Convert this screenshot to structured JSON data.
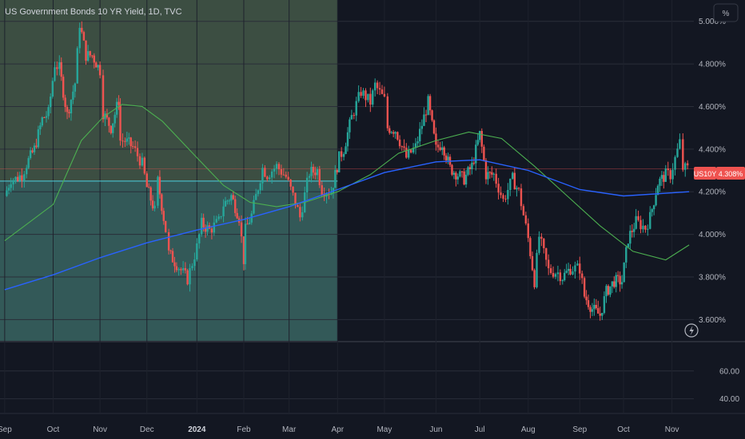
{
  "header": {
    "title": "US Government Bonds 10 YR Yield, 1D, TVC"
  },
  "scale_button": {
    "label": "%"
  },
  "lightning_icon": "lightning-icon",
  "price_badge": {
    "symbol": "US10Y",
    "value": "4.308%"
  },
  "colors": {
    "background": "#131722",
    "up": "#26a69a",
    "down": "#ef5350",
    "ma_fast": "#4caf50",
    "ma_slow": "#2962ff",
    "hline": "#4dd0e1",
    "price_line": "#ef5350",
    "shade_top": "#3c4e42",
    "shade_bottom": "#335958"
  },
  "chart_data": [
    {
      "type": "candlestick",
      "title": "US Government Bonds 10 YR Yield, 1D, TVC",
      "unit": "%",
      "x_tick_labels": [
        "Sep",
        "Oct",
        "Nov",
        "Dec",
        "2024",
        "Feb",
        "Mar",
        "Apr",
        "May",
        "Jun",
        "Jul",
        "Aug",
        "Sep",
        "Oct",
        "Nov"
      ],
      "y_tick_labels": [
        "5.000%",
        "4.800%",
        "4.600%",
        "4.400%",
        "4.200%",
        "4.000%",
        "3.800%",
        "3.600%"
      ],
      "ylim": [
        3.5,
        5.1
      ],
      "last_value": 4.308,
      "horizontal_level": 4.25,
      "series": [
        {
          "kind": "close",
          "points": [
            {
              "x": "2023-09-01",
              "y": 4.18
            },
            {
              "x": "2023-09-05",
              "y": 4.26
            },
            {
              "x": "2023-09-08",
              "y": 4.26
            },
            {
              "x": "2023-09-12",
              "y": 4.28
            },
            {
              "x": "2023-09-15",
              "y": 4.33
            },
            {
              "x": "2023-09-20",
              "y": 4.4
            },
            {
              "x": "2023-09-25",
              "y": 4.54
            },
            {
              "x": "2023-09-29",
              "y": 4.57
            },
            {
              "x": "2023-10-03",
              "y": 4.8
            },
            {
              "x": "2023-10-06",
              "y": 4.78
            },
            {
              "x": "2023-10-11",
              "y": 4.56
            },
            {
              "x": "2023-10-16",
              "y": 4.71
            },
            {
              "x": "2023-10-19",
              "y": 4.99
            },
            {
              "x": "2023-10-23",
              "y": 4.84
            },
            {
              "x": "2023-10-27",
              "y": 4.84
            },
            {
              "x": "2023-11-01",
              "y": 4.77
            },
            {
              "x": "2023-11-03",
              "y": 4.57
            },
            {
              "x": "2023-11-08",
              "y": 4.5
            },
            {
              "x": "2023-11-13",
              "y": 4.63
            },
            {
              "x": "2023-11-14",
              "y": 4.44
            },
            {
              "x": "2023-11-17",
              "y": 4.44
            },
            {
              "x": "2023-11-22",
              "y": 4.41
            },
            {
              "x": "2023-11-28",
              "y": 4.33
            },
            {
              "x": "2023-12-01",
              "y": 4.22
            },
            {
              "x": "2023-12-06",
              "y": 4.11
            },
            {
              "x": "2023-12-08",
              "y": 4.25
            },
            {
              "x": "2023-12-13",
              "y": 4.02
            },
            {
              "x": "2023-12-15",
              "y": 3.91
            },
            {
              "x": "2023-12-20",
              "y": 3.86
            },
            {
              "x": "2023-12-27",
              "y": 3.79
            },
            {
              "x": "2024-01-02",
              "y": 3.94
            },
            {
              "x": "2024-01-05",
              "y": 4.05
            },
            {
              "x": "2024-01-10",
              "y": 4.02
            },
            {
              "x": "2024-01-16",
              "y": 4.06
            },
            {
              "x": "2024-01-19",
              "y": 4.14
            },
            {
              "x": "2024-01-24",
              "y": 4.18
            },
            {
              "x": "2024-01-29",
              "y": 4.08
            },
            {
              "x": "2024-02-01",
              "y": 3.88
            },
            {
              "x": "2024-02-02",
              "y": 4.02
            },
            {
              "x": "2024-02-06",
              "y": 4.09
            },
            {
              "x": "2024-02-13",
              "y": 4.31
            },
            {
              "x": "2024-02-16",
              "y": 4.28
            },
            {
              "x": "2024-02-22",
              "y": 4.32
            },
            {
              "x": "2024-02-28",
              "y": 4.27
            },
            {
              "x": "2024-03-05",
              "y": 4.15
            },
            {
              "x": "2024-03-08",
              "y": 4.08
            },
            {
              "x": "2024-03-14",
              "y": 4.29
            },
            {
              "x": "2024-03-19",
              "y": 4.3
            },
            {
              "x": "2024-03-22",
              "y": 4.21
            },
            {
              "x": "2024-03-28",
              "y": 4.2
            },
            {
              "x": "2024-04-02",
              "y": 4.36
            },
            {
              "x": "2024-04-05",
              "y": 4.4
            },
            {
              "x": "2024-04-10",
              "y": 4.55
            },
            {
              "x": "2024-04-16",
              "y": 4.67
            },
            {
              "x": "2024-04-22",
              "y": 4.62
            },
            {
              "x": "2024-04-25",
              "y": 4.7
            },
            {
              "x": "2024-05-01",
              "y": 4.63
            },
            {
              "x": "2024-05-03",
              "y": 4.5
            },
            {
              "x": "2024-05-08",
              "y": 4.49
            },
            {
              "x": "2024-05-15",
              "y": 4.36
            },
            {
              "x": "2024-05-21",
              "y": 4.41
            },
            {
              "x": "2024-05-29",
              "y": 4.62
            },
            {
              "x": "2024-06-03",
              "y": 4.4
            },
            {
              "x": "2024-06-07",
              "y": 4.43
            },
            {
              "x": "2024-06-12",
              "y": 4.31
            },
            {
              "x": "2024-06-17",
              "y": 4.28
            },
            {
              "x": "2024-06-21",
              "y": 4.26
            },
            {
              "x": "2024-06-26",
              "y": 4.32
            },
            {
              "x": "2024-07-01",
              "y": 4.47
            },
            {
              "x": "2024-07-05",
              "y": 4.28
            },
            {
              "x": "2024-07-10",
              "y": 4.28
            },
            {
              "x": "2024-07-16",
              "y": 4.16
            },
            {
              "x": "2024-07-22",
              "y": 4.26
            },
            {
              "x": "2024-07-26",
              "y": 4.2
            },
            {
              "x": "2024-08-01",
              "y": 3.98
            },
            {
              "x": "2024-08-05",
              "y": 3.78
            },
            {
              "x": "2024-08-08",
              "y": 3.99
            },
            {
              "x": "2024-08-14",
              "y": 3.83
            },
            {
              "x": "2024-08-20",
              "y": 3.82
            },
            {
              "x": "2024-08-23",
              "y": 3.8
            },
            {
              "x": "2024-08-28",
              "y": 3.84
            },
            {
              "x": "2024-09-03",
              "y": 3.84
            },
            {
              "x": "2024-09-06",
              "y": 3.71
            },
            {
              "x": "2024-09-11",
              "y": 3.65
            },
            {
              "x": "2024-09-16",
              "y": 3.62
            },
            {
              "x": "2024-09-20",
              "y": 3.73
            },
            {
              "x": "2024-09-25",
              "y": 3.78
            },
            {
              "x": "2024-09-30",
              "y": 3.78
            },
            {
              "x": "2024-10-04",
              "y": 3.98
            },
            {
              "x": "2024-10-09",
              "y": 4.06
            },
            {
              "x": "2024-10-15",
              "y": 4.03
            },
            {
              "x": "2024-10-18",
              "y": 4.08
            },
            {
              "x": "2024-10-23",
              "y": 4.24
            },
            {
              "x": "2024-10-28",
              "y": 4.28
            },
            {
              "x": "2024-10-31",
              "y": 4.28
            },
            {
              "x": "2024-11-06",
              "y": 4.43
            },
            {
              "x": "2024-11-08",
              "y": 4.31
            },
            {
              "x": "2024-11-11",
              "y": 4.308
            }
          ]
        },
        {
          "kind": "moving_average",
          "color_key": "ma_fast",
          "points": [
            {
              "x": "2023-09-01",
              "y": 3.97
            },
            {
              "x": "2023-10-02",
              "y": 4.14
            },
            {
              "x": "2023-10-20",
              "y": 4.44
            },
            {
              "x": "2023-11-03",
              "y": 4.55
            },
            {
              "x": "2023-11-15",
              "y": 4.61
            },
            {
              "x": "2023-11-28",
              "y": 4.6
            },
            {
              "x": "2023-12-11",
              "y": 4.53
            },
            {
              "x": "2024-01-02",
              "y": 4.36
            },
            {
              "x": "2024-01-19",
              "y": 4.23
            },
            {
              "x": "2024-02-05",
              "y": 4.15
            },
            {
              "x": "2024-02-22",
              "y": 4.13
            },
            {
              "x": "2024-03-11",
              "y": 4.15
            },
            {
              "x": "2024-04-01",
              "y": 4.2
            },
            {
              "x": "2024-04-22",
              "y": 4.28
            },
            {
              "x": "2024-05-10",
              "y": 4.38
            },
            {
              "x": "2024-06-03",
              "y": 4.44
            },
            {
              "x": "2024-06-24",
              "y": 4.48
            },
            {
              "x": "2024-07-15",
              "y": 4.45
            },
            {
              "x": "2024-08-05",
              "y": 4.32
            },
            {
              "x": "2024-08-26",
              "y": 4.18
            },
            {
              "x": "2024-09-16",
              "y": 4.04
            },
            {
              "x": "2024-10-07",
              "y": 3.92
            },
            {
              "x": "2024-10-28",
              "y": 3.88
            },
            {
              "x": "2024-11-12",
              "y": 3.95
            }
          ]
        },
        {
          "kind": "moving_average",
          "color_key": "ma_slow",
          "points": [
            {
              "x": "2023-09-01",
              "y": 3.74
            },
            {
              "x": "2023-10-02",
              "y": 3.81
            },
            {
              "x": "2023-11-01",
              "y": 3.89
            },
            {
              "x": "2023-12-01",
              "y": 3.96
            },
            {
              "x": "2024-01-02",
              "y": 4.02
            },
            {
              "x": "2024-02-01",
              "y": 4.07
            },
            {
              "x": "2024-03-01",
              "y": 4.13
            },
            {
              "x": "2024-04-01",
              "y": 4.21
            },
            {
              "x": "2024-05-01",
              "y": 4.29
            },
            {
              "x": "2024-06-03",
              "y": 4.34
            },
            {
              "x": "2024-07-01",
              "y": 4.35
            },
            {
              "x": "2024-08-01",
              "y": 4.3
            },
            {
              "x": "2024-09-03",
              "y": 4.21
            },
            {
              "x": "2024-10-01",
              "y": 4.18
            },
            {
              "x": "2024-11-12",
              "y": 4.2
            }
          ]
        }
      ]
    },
    {
      "type": "line",
      "y_tick_labels": [
        "60.00",
        "40.00"
      ],
      "ylim": [
        30,
        80
      ],
      "series": []
    }
  ]
}
